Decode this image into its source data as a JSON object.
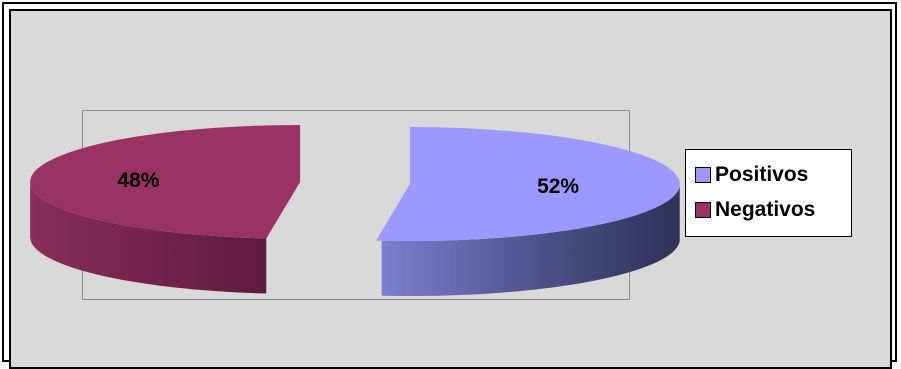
{
  "chart_data": {
    "type": "pie",
    "title": "",
    "slices": [
      {
        "label": "Positivos",
        "value": 52,
        "value_label": "52%",
        "color": "#9999ff"
      },
      {
        "label": "Negativos",
        "value": 48,
        "value_label": "48%",
        "color": "#993366"
      }
    ],
    "exploded": true,
    "style": "3d",
    "legend_position": "right"
  },
  "colors": {
    "background": "#d9d9d9",
    "plot_border": "#8c8c8c",
    "positive_top": "#9999ff",
    "positive_side_dark": "#3d3f6b",
    "negative_top": "#993366",
    "negative_side_dark": "#6e1f47"
  }
}
